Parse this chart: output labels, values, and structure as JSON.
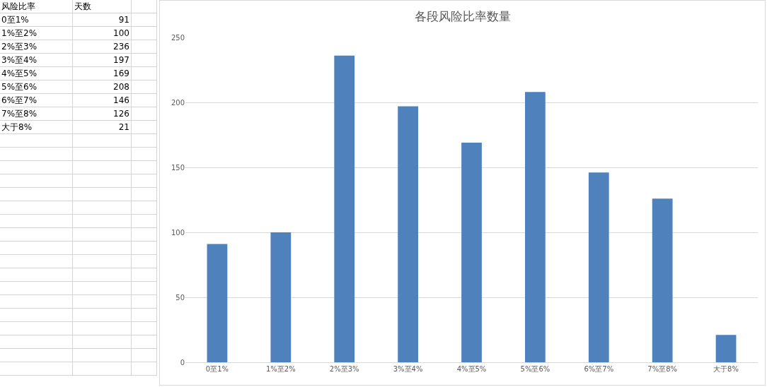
{
  "chart_data": [
    {
      "type": "other",
      "annotations": [
        "风险比率",
        "天数",
        "0至1%",
        "91",
        "1%至2%",
        "100",
        "2%至3%",
        "236",
        "3%至4%",
        "197",
        "4%至5%",
        "169",
        "5%至6%",
        "208",
        "6%至7%",
        "146",
        "7%至8%",
        "126",
        "大于8%",
        "21"
      ]
    },
    {
      "type": "bar",
      "title": "各段风险比率数量",
      "categories": [
        "0至1%",
        "1%至2%",
        "2%至3%",
        "3%至4%",
        "4%至5%",
        "5%至6%",
        "6%至7%",
        "7%至8%",
        "大于8%"
      ],
      "values": [
        91,
        100,
        236,
        197,
        169,
        208,
        146,
        126,
        21
      ],
      "color": "#4f81bd",
      "ylim": [
        0,
        250
      ],
      "yticks": [
        0,
        50,
        100,
        150,
        200,
        250
      ],
      "grid": "y"
    }
  ]
}
